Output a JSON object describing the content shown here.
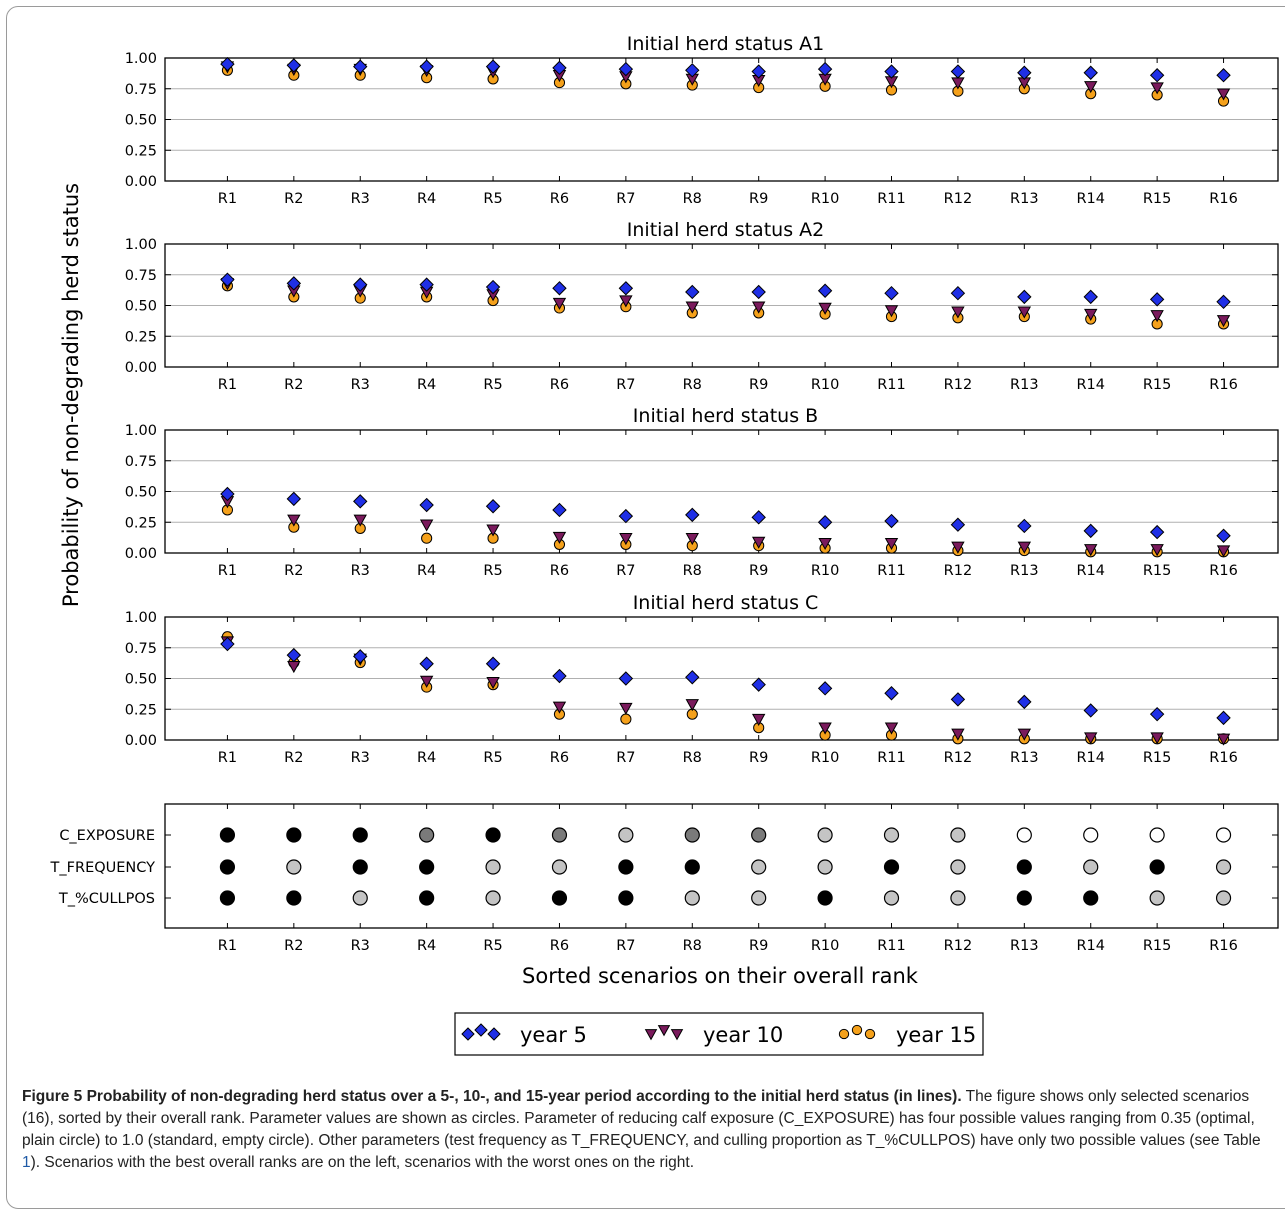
{
  "chart_data": [
    {
      "type": "scatter",
      "title": "Initial herd status A1",
      "categories": [
        "R1",
        "R2",
        "R3",
        "R4",
        "R5",
        "R6",
        "R7",
        "R8",
        "R9",
        "R10",
        "R11",
        "R12",
        "R13",
        "R14",
        "R15",
        "R16"
      ],
      "ylim": [
        0,
        1
      ],
      "yticks": [
        "0.00",
        "0.25",
        "0.50",
        "0.75",
        "1.00"
      ],
      "grid": "horizontal",
      "series": [
        {
          "name": "year 5",
          "values": [
            0.95,
            0.94,
            0.93,
            0.93,
            0.93,
            0.92,
            0.91,
            0.9,
            0.89,
            0.91,
            0.89,
            0.89,
            0.88,
            0.88,
            0.86,
            0.86
          ]
        },
        {
          "name": "year 10",
          "values": [
            0.93,
            0.91,
            0.91,
            0.9,
            0.89,
            0.86,
            0.85,
            0.83,
            0.82,
            0.83,
            0.81,
            0.8,
            0.8,
            0.77,
            0.76,
            0.71
          ]
        },
        {
          "name": "year 15",
          "values": [
            0.9,
            0.86,
            0.86,
            0.84,
            0.83,
            0.8,
            0.79,
            0.78,
            0.76,
            0.77,
            0.74,
            0.73,
            0.75,
            0.71,
            0.7,
            0.65
          ]
        }
      ]
    },
    {
      "type": "scatter",
      "title": "Initial herd status A2",
      "categories": [
        "R1",
        "R2",
        "R3",
        "R4",
        "R5",
        "R6",
        "R7",
        "R8",
        "R9",
        "R10",
        "R11",
        "R12",
        "R13",
        "R14",
        "R15",
        "R16"
      ],
      "ylim": [
        0,
        1
      ],
      "yticks": [
        "0.00",
        "0.25",
        "0.50",
        "0.75",
        "1.00"
      ],
      "grid": "horizontal",
      "series": [
        {
          "name": "year 5",
          "values": [
            0.71,
            0.68,
            0.67,
            0.67,
            0.65,
            0.64,
            0.64,
            0.61,
            0.61,
            0.62,
            0.6,
            0.6,
            0.57,
            0.57,
            0.55,
            0.53
          ]
        },
        {
          "name": "year 10",
          "values": [
            0.68,
            0.62,
            0.62,
            0.61,
            0.59,
            0.52,
            0.54,
            0.49,
            0.49,
            0.48,
            0.46,
            0.45,
            0.45,
            0.43,
            0.42,
            0.38
          ]
        },
        {
          "name": "year 15",
          "values": [
            0.66,
            0.57,
            0.56,
            0.57,
            0.54,
            0.48,
            0.49,
            0.44,
            0.44,
            0.43,
            0.41,
            0.4,
            0.41,
            0.39,
            0.35,
            0.35
          ]
        }
      ]
    },
    {
      "type": "scatter",
      "title": "Initial herd status B",
      "categories": [
        "R1",
        "R2",
        "R3",
        "R4",
        "R5",
        "R6",
        "R7",
        "R8",
        "R9",
        "R10",
        "R11",
        "R12",
        "R13",
        "R14",
        "R15",
        "R16"
      ],
      "ylim": [
        0,
        1
      ],
      "yticks": [
        "0.00",
        "0.25",
        "0.50",
        "0.75",
        "1.00"
      ],
      "grid": "horizontal",
      "series": [
        {
          "name": "year 5",
          "values": [
            0.48,
            0.44,
            0.42,
            0.39,
            0.38,
            0.35,
            0.3,
            0.31,
            0.29,
            0.25,
            0.26,
            0.23,
            0.22,
            0.18,
            0.17,
            0.14
          ]
        },
        {
          "name": "year 10",
          "values": [
            0.42,
            0.27,
            0.27,
            0.23,
            0.19,
            0.13,
            0.12,
            0.12,
            0.09,
            0.08,
            0.08,
            0.05,
            0.05,
            0.03,
            0.03,
            0.02
          ]
        },
        {
          "name": "year 15",
          "values": [
            0.35,
            0.21,
            0.2,
            0.12,
            0.12,
            0.07,
            0.07,
            0.06,
            0.06,
            0.04,
            0.04,
            0.02,
            0.02,
            0.01,
            0.01,
            0.01
          ]
        }
      ]
    },
    {
      "type": "scatter",
      "title": "Initial herd status C",
      "categories": [
        "R1",
        "R2",
        "R3",
        "R4",
        "R5",
        "R6",
        "R7",
        "R8",
        "R9",
        "R10",
        "R11",
        "R12",
        "R13",
        "R14",
        "R15",
        "R16"
      ],
      "ylim": [
        0,
        1
      ],
      "yticks": [
        "0.00",
        "0.25",
        "0.50",
        "0.75",
        "1.00"
      ],
      "grid": "horizontal",
      "series": [
        {
          "name": "year 5",
          "values": [
            0.78,
            0.69,
            0.68,
            0.62,
            0.62,
            0.52,
            0.5,
            0.51,
            0.45,
            0.42,
            0.38,
            0.33,
            0.31,
            0.24,
            0.21,
            0.18
          ]
        },
        {
          "name": "year 10",
          "values": [
            0.8,
            0.6,
            0.66,
            0.48,
            0.47,
            0.27,
            0.26,
            0.29,
            0.17,
            0.1,
            0.1,
            0.05,
            0.05,
            0.02,
            0.02,
            0.01
          ]
        },
        {
          "name": "year 15",
          "values": [
            0.84,
            0.63,
            0.63,
            0.43,
            0.45,
            0.21,
            0.17,
            0.21,
            0.1,
            0.04,
            0.04,
            0.01,
            0.01,
            0.01,
            0.01,
            0.01
          ]
        }
      ]
    },
    {
      "type": "table",
      "categories": [
        "R1",
        "R2",
        "R3",
        "R4",
        "R5",
        "R6",
        "R7",
        "R8",
        "R9",
        "R10",
        "R11",
        "R12",
        "R13",
        "R14",
        "R15",
        "R16"
      ],
      "rows": [
        {
          "name": "C_EXPOSURE",
          "levels": [
            "black",
            "black",
            "black",
            "dark",
            "black",
            "dark",
            "light",
            "dark",
            "dark",
            "light",
            "light",
            "light",
            "empty",
            "empty",
            "empty",
            "empty"
          ]
        },
        {
          "name": "T_FREQUENCY",
          "levels": [
            "black",
            "light",
            "black",
            "black",
            "light",
            "light",
            "black",
            "black",
            "light",
            "light",
            "black",
            "light",
            "black",
            "light",
            "black",
            "light"
          ]
        },
        {
          "name": "T_%CULLPOS",
          "levels": [
            "black",
            "black",
            "light",
            "black",
            "light",
            "black",
            "black",
            "light",
            "light",
            "black",
            "light",
            "light",
            "black",
            "black",
            "light",
            "light"
          ]
        }
      ]
    }
  ],
  "labels": {
    "ylabel": "Probability of non-degrading herd status",
    "xlabel": "Sorted scenarios on their overall rank"
  },
  "colors": {
    "year5": "#1f2fe6",
    "year10": "#7a1a5c",
    "year15": "#f5a11b",
    "level_black": "#000000",
    "level_dark": "#7a7a7a",
    "level_light": "#c4c4c4",
    "level_empty": "#ffffff",
    "grid": "#b0b0b0",
    "frame": "#000000"
  },
  "legend": {
    "position": "bottom-center",
    "entries": [
      {
        "label": "year 5",
        "marker": "diamond"
      },
      {
        "label": "year 10",
        "marker": "triangle-down"
      },
      {
        "label": "year 15",
        "marker": "circle"
      }
    ]
  },
  "caption": {
    "lead": "Figure 5  Probability of non-degrading herd status over a 5-, 10-, and 15-year period according to the initial herd status (in lines).",
    "text_1": " The figure shows only selected scenarios (16), sorted by their overall rank. Parameter values are shown as circles. Parameter of reducing calf exposure (C_EXPOSURE) has four possible values ranging from 0.35 (optimal, plain circle) to 1.0 (standard, empty circle). Other parameters (test frequency as T_FREQUENCY, and culling proportion as T_%CULLPOS) have only two possible values (see Table ",
    "table_ref": "1",
    "text_2": "). Scenarios with the best overall ranks are on the left, scenarios with the worst ones on the right."
  }
}
